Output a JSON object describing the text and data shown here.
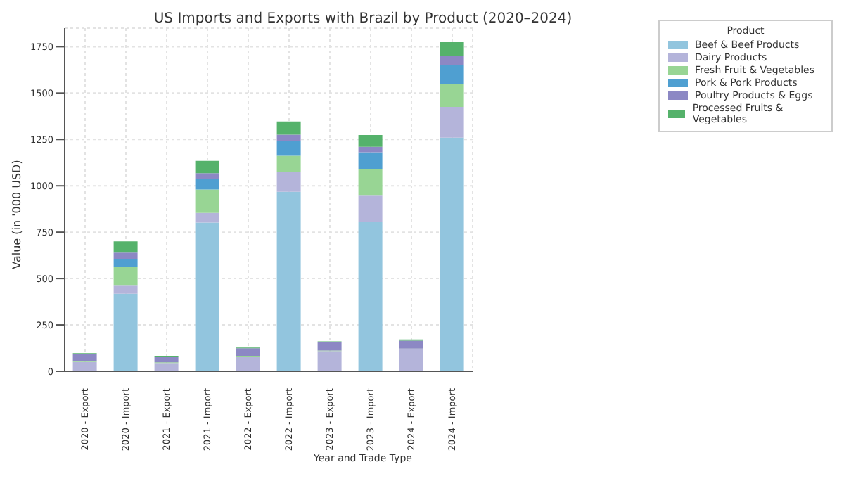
{
  "chart_data": {
    "type": "bar",
    "title": "US Imports and Exports with Brazil by Product (2020–2024)",
    "xlabel": "Year and Trade Type",
    "ylabel": "Value (in '000 USD)",
    "legend_title": "Product",
    "categories": [
      "2020 - Export",
      "2020 - Import",
      "2021 - Export",
      "2021 - Import",
      "2022 - Export",
      "2022 - Import",
      "2023 - Export",
      "2023 - Import",
      "2024 - Export",
      "2024 - Import"
    ],
    "stacked": true,
    "ylim": [
      0,
      1850
    ],
    "yticks": [
      0,
      250,
      500,
      750,
      1000,
      1250,
      1500,
      1750
    ],
    "grid": true,
    "legend": "top right",
    "series": [
      {
        "name": "Beef & Beef Products",
        "color": "#92c5de",
        "values": [
          0,
          418,
          0,
          802,
          0,
          968,
          0,
          804,
          0,
          1260
        ]
      },
      {
        "name": "Dairy Products",
        "color": "#b4b4da",
        "values": [
          50,
          47,
          45,
          52,
          78,
          107,
          109,
          143,
          119,
          165
        ]
      },
      {
        "name": "Fresh Fruit & Vegetables",
        "color": "#98d594",
        "values": [
          3,
          99,
          3,
          126,
          5,
          87,
          3,
          142,
          3,
          124
        ]
      },
      {
        "name": "Pork & Pork Products",
        "color": "#4f9fd1",
        "values": [
          0,
          41,
          0,
          59,
          0,
          79,
          0,
          92,
          0,
          102
        ]
      },
      {
        "name": "Poultry Products & Eggs",
        "color": "#8c88c4",
        "values": [
          40,
          35,
          30,
          29,
          41,
          35,
          45,
          29,
          43,
          48
        ]
      },
      {
        "name": "Processed Fruits & Vegetables",
        "color": "#55b26b",
        "values": [
          5,
          60,
          5,
          66,
          4,
          71,
          4,
          64,
          7,
          75
        ]
      }
    ]
  }
}
